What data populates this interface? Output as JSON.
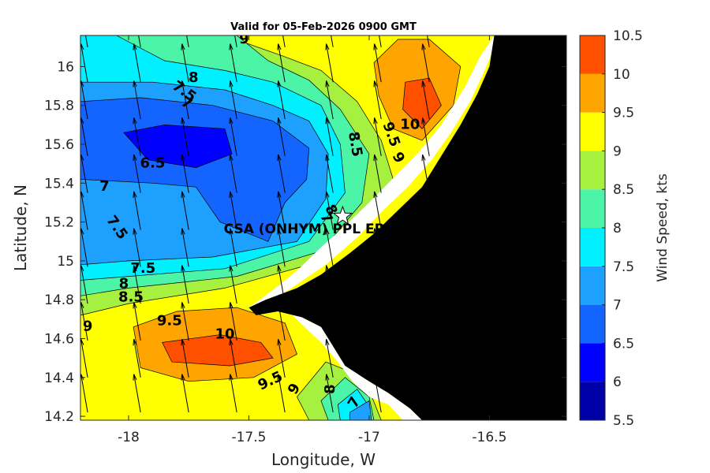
{
  "chart_data": {
    "type": "filled-contour-quiver",
    "title": "Valid for 05-Feb-2026 0900 GMT",
    "xlabel": "Longitude, W",
    "ylabel": "Latitude, N",
    "xlim": [
      -18.2,
      -16.18
    ],
    "ylim": [
      14.18,
      16.16
    ],
    "xticks": [
      {
        "value": -18,
        "label": "-18"
      },
      {
        "value": -17.5,
        "label": "-17.5"
      },
      {
        "value": -17,
        "label": "-17"
      },
      {
        "value": -16.5,
        "label": "-16.5"
      }
    ],
    "yticks": [
      {
        "value": 16,
        "label": "16"
      },
      {
        "value": 15.8,
        "label": "15.8"
      },
      {
        "value": 15.6,
        "label": "15.6"
      },
      {
        "value": 15.4,
        "label": "15.4"
      },
      {
        "value": 15.2,
        "label": "15.2"
      },
      {
        "value": 15,
        "label": "15"
      },
      {
        "value": 14.8,
        "label": "14.8"
      },
      {
        "value": 14.6,
        "label": "14.6"
      },
      {
        "value": 14.4,
        "label": "14.4"
      },
      {
        "value": 14.2,
        "label": "14.2"
      }
    ],
    "colorbar": {
      "label": "Wind Speed, kts",
      "min": 5.5,
      "max": 10.5,
      "levels": [
        {
          "from": 5.5,
          "to": 6.0,
          "color": "#0000a8"
        },
        {
          "from": 6.0,
          "to": 6.5,
          "color": "#0000ff"
        },
        {
          "from": 6.5,
          "to": 7.0,
          "color": "#1464ff"
        },
        {
          "from": 7.0,
          "to": 7.5,
          "color": "#1ea0ff"
        },
        {
          "from": 7.5,
          "to": 8.0,
          "color": "#00f0ff"
        },
        {
          "from": 8.0,
          "to": 8.5,
          "color": "#4cf4a8"
        },
        {
          "from": 8.5,
          "to": 9.0,
          "color": "#a6f040"
        },
        {
          "from": 9.0,
          "to": 9.5,
          "color": "#ffff00"
        },
        {
          "from": 9.5,
          "to": 10.0,
          "color": "#ffa500"
        },
        {
          "from": 10.0,
          "to": 10.5,
          "color": "#ff5000"
        }
      ],
      "ticks": [
        {
          "value": 10.5,
          "label": "10.5"
        },
        {
          "value": 10,
          "label": "10"
        },
        {
          "value": 9.5,
          "label": "9.5"
        },
        {
          "value": 9,
          "label": "9"
        },
        {
          "value": 8.5,
          "label": "8.5"
        },
        {
          "value": 8,
          "label": "8"
        },
        {
          "value": 7.5,
          "label": "7.5"
        },
        {
          "value": 7,
          "label": "7"
        },
        {
          "value": 6.5,
          "label": "6.5"
        },
        {
          "value": 6,
          "label": "6"
        },
        {
          "value": 5.5,
          "label": "5.5"
        }
      ]
    },
    "contour_bands": [
      {
        "level": 9.0,
        "color": "#ffff00",
        "points": [
          [
            -18.2,
            14.18
          ],
          [
            -16.18,
            14.18
          ],
          [
            -16.18,
            16.16
          ],
          [
            -18.2,
            16.16
          ]
        ]
      },
      {
        "level": 8.5,
        "color": "#a6f040",
        "points": [
          [
            -18.2,
            16.16
          ],
          [
            -17.6,
            16.16
          ],
          [
            -17.35,
            16.05
          ],
          [
            -17.2,
            15.98
          ],
          [
            -17.05,
            15.82
          ],
          [
            -16.95,
            15.62
          ],
          [
            -16.9,
            15.42
          ],
          [
            -17.0,
            15.18
          ],
          [
            -17.25,
            14.98
          ],
          [
            -17.6,
            14.86
          ],
          [
            -18.0,
            14.78
          ],
          [
            -18.2,
            14.72
          ]
        ]
      },
      {
        "level": 8.5,
        "color": "#a6f040",
        "points": [
          [
            -17.25,
            14.18
          ],
          [
            -17.3,
            14.3
          ],
          [
            -17.18,
            14.48
          ],
          [
            -17.02,
            14.4
          ],
          [
            -16.95,
            14.18
          ]
        ]
      },
      {
        "level": 8.0,
        "color": "#4cf4a8",
        "points": [
          [
            -18.2,
            16.16
          ],
          [
            -17.55,
            16.16
          ],
          [
            -17.42,
            16.03
          ],
          [
            -17.25,
            15.93
          ],
          [
            -17.12,
            15.78
          ],
          [
            -17.0,
            15.55
          ],
          [
            -17.03,
            15.3
          ],
          [
            -17.2,
            15.05
          ],
          [
            -17.55,
            14.92
          ],
          [
            -18.0,
            14.86
          ],
          [
            -18.2,
            14.82
          ]
        ]
      },
      {
        "level": 8.0,
        "color": "#4cf4a8",
        "points": [
          [
            -17.17,
            14.18
          ],
          [
            -17.2,
            14.28
          ],
          [
            -17.1,
            14.4
          ],
          [
            -17.0,
            14.3
          ],
          [
            -16.98,
            14.18
          ]
        ]
      },
      {
        "level": 7.5,
        "color": "#00f0ff",
        "points": [
          [
            -18.2,
            16.16
          ],
          [
            -18.05,
            16.16
          ],
          [
            -17.85,
            16.03
          ],
          [
            -17.6,
            15.98
          ],
          [
            -17.4,
            15.92
          ],
          [
            -17.2,
            15.8
          ],
          [
            -17.12,
            15.6
          ],
          [
            -17.1,
            15.35
          ],
          [
            -17.25,
            15.1
          ],
          [
            -17.6,
            14.96
          ],
          [
            -18.0,
            14.92
          ],
          [
            -18.2,
            14.9
          ]
        ]
      },
      {
        "level": 7.5,
        "color": "#00f0ff",
        "points": [
          [
            -17.12,
            14.18
          ],
          [
            -17.13,
            14.26
          ],
          [
            -17.05,
            14.34
          ],
          [
            -17.0,
            14.25
          ],
          [
            -16.99,
            14.18
          ]
        ]
      },
      {
        "level": 7.0,
        "color": "#1ea0ff",
        "points": [
          [
            -18.2,
            15.92
          ],
          [
            -17.9,
            15.92
          ],
          [
            -17.6,
            15.88
          ],
          [
            -17.4,
            15.8
          ],
          [
            -17.25,
            15.72
          ],
          [
            -17.17,
            15.55
          ],
          [
            -17.18,
            15.32
          ],
          [
            -17.3,
            15.1
          ],
          [
            -17.65,
            15.02
          ],
          [
            -18.0,
            15.0
          ],
          [
            -18.2,
            14.98
          ]
        ]
      },
      {
        "level": 7.0,
        "color": "#1ea0ff",
        "points": [
          [
            -17.08,
            14.18
          ],
          [
            -17.08,
            14.22
          ],
          [
            -17.0,
            14.28
          ],
          [
            -16.99,
            14.18
          ]
        ]
      },
      {
        "level": 6.5,
        "color": "#1464ff",
        "points": [
          [
            -18.2,
            15.82
          ],
          [
            -17.95,
            15.84
          ],
          [
            -17.65,
            15.8
          ],
          [
            -17.4,
            15.72
          ],
          [
            -17.25,
            15.58
          ],
          [
            -17.26,
            15.42
          ],
          [
            -17.35,
            15.3
          ],
          [
            -17.42,
            15.1
          ],
          [
            -17.62,
            15.2
          ],
          [
            -17.72,
            15.38
          ],
          [
            -17.9,
            15.4
          ],
          [
            -18.2,
            15.42
          ]
        ]
      },
      {
        "level": 6.0,
        "color": "#0000ff",
        "points": [
          [
            -18.02,
            15.66
          ],
          [
            -17.85,
            15.7
          ],
          [
            -17.6,
            15.68
          ],
          [
            -17.57,
            15.55
          ],
          [
            -17.72,
            15.48
          ],
          [
            -17.92,
            15.52
          ]
        ]
      },
      {
        "level": 9.5,
        "color": "#ffa500",
        "points": [
          [
            -17.98,
            14.66
          ],
          [
            -17.8,
            14.74
          ],
          [
            -17.55,
            14.76
          ],
          [
            -17.35,
            14.68
          ],
          [
            -17.3,
            14.52
          ],
          [
            -17.48,
            14.4
          ],
          [
            -17.75,
            14.38
          ],
          [
            -17.95,
            14.45
          ]
        ]
      },
      {
        "level": 10.0,
        "color": "#ff5000",
        "points": [
          [
            -17.86,
            14.58
          ],
          [
            -17.62,
            14.62
          ],
          [
            -17.45,
            14.58
          ],
          [
            -17.4,
            14.5
          ],
          [
            -17.58,
            14.46
          ],
          [
            -17.82,
            14.48
          ]
        ]
      },
      {
        "level": 9.5,
        "color": "#ffa500",
        "points": [
          [
            -16.98,
            16.02
          ],
          [
            -16.88,
            16.14
          ],
          [
            -16.75,
            16.14
          ],
          [
            -16.62,
            16.0
          ],
          [
            -16.65,
            15.8
          ],
          [
            -16.78,
            15.62
          ],
          [
            -16.9,
            15.68
          ],
          [
            -16.96,
            15.85
          ]
        ]
      },
      {
        "level": 10.0,
        "color": "#ff5000",
        "points": [
          [
            -16.85,
            15.92
          ],
          [
            -16.75,
            15.94
          ],
          [
            -16.7,
            15.8
          ],
          [
            -16.78,
            15.68
          ],
          [
            -16.86,
            15.78
          ]
        ]
      }
    ],
    "land": [
      [
        -16.48,
        16.16
      ],
      [
        -16.18,
        16.16
      ],
      [
        -16.18,
        14.18
      ],
      [
        -16.78,
        14.18
      ],
      [
        -16.83,
        14.24
      ],
      [
        -16.92,
        14.32
      ],
      [
        -17.0,
        14.38
      ],
      [
        -17.1,
        14.46
      ],
      [
        -17.15,
        14.56
      ],
      [
        -17.2,
        14.66
      ],
      [
        -17.28,
        14.71
      ],
      [
        -17.38,
        14.74
      ],
      [
        -17.47,
        14.72
      ],
      [
        -17.5,
        14.76
      ],
      [
        -17.43,
        14.8
      ],
      [
        -17.3,
        14.86
      ],
      [
        -17.2,
        14.93
      ],
      [
        -17.08,
        15.04
      ],
      [
        -16.98,
        15.14
      ],
      [
        -16.88,
        15.26
      ],
      [
        -16.78,
        15.38
      ],
      [
        -16.7,
        15.54
      ],
      [
        -16.62,
        15.7
      ],
      [
        -16.55,
        15.86
      ],
      [
        -16.5,
        16.0
      ]
    ],
    "coastal_strip": [
      [
        -16.48,
        16.16
      ],
      [
        -16.54,
        16.05
      ],
      [
        -16.6,
        15.9
      ],
      [
        -16.7,
        15.7
      ],
      [
        -16.8,
        15.55
      ],
      [
        -16.92,
        15.4
      ],
      [
        -17.0,
        15.3
      ],
      [
        -17.1,
        15.18
      ],
      [
        -17.2,
        15.07
      ],
      [
        -17.3,
        14.95
      ],
      [
        -17.4,
        14.85
      ],
      [
        -17.5,
        14.76
      ],
      [
        -17.47,
        14.72
      ],
      [
        -17.38,
        14.74
      ],
      [
        -17.28,
        14.71
      ],
      [
        -17.2,
        14.66
      ],
      [
        -17.15,
        14.56
      ],
      [
        -17.1,
        14.46
      ],
      [
        -17.0,
        14.38
      ],
      [
        -16.92,
        14.32
      ],
      [
        -16.83,
        14.24
      ],
      [
        -16.78,
        14.18
      ],
      [
        -16.86,
        14.18
      ],
      [
        -16.92,
        14.26
      ],
      [
        -17.0,
        14.3
      ],
      [
        -17.07,
        14.38
      ],
      [
        -17.13,
        14.48
      ],
      [
        -17.2,
        14.58
      ],
      [
        -17.26,
        14.65
      ],
      [
        -17.32,
        14.72
      ],
      [
        -17.42,
        14.78
      ],
      [
        -17.3,
        14.88
      ],
      [
        -17.18,
        14.98
      ],
      [
        -17.05,
        15.12
      ],
      [
        -16.95,
        15.25
      ],
      [
        -16.84,
        15.38
      ],
      [
        -16.74,
        15.52
      ],
      [
        -16.66,
        15.66
      ],
      [
        -16.58,
        15.82
      ],
      [
        -16.52,
        15.98
      ],
      [
        -16.46,
        16.16
      ]
    ],
    "contour_labels": [
      {
        "text": "9",
        "lon": -17.52,
        "lat": 16.14,
        "rot": 0
      },
      {
        "text": "8",
        "lon": -17.73,
        "lat": 15.94,
        "rot": 0
      },
      {
        "text": "7.5",
        "lon": -17.77,
        "lat": 15.87,
        "rot": 35
      },
      {
        "text": "7",
        "lon": -17.76,
        "lat": 15.81,
        "rot": 30
      },
      {
        "text": "10",
        "lon": -16.83,
        "lat": 15.7,
        "rot": 0
      },
      {
        "text": "9.5",
        "lon": -16.91,
        "lat": 15.65,
        "rot": 70
      },
      {
        "text": "9",
        "lon": -16.88,
        "lat": 15.53,
        "rot": 60
      },
      {
        "text": "8.5",
        "lon": -17.06,
        "lat": 15.6,
        "rot": 80
      },
      {
        "text": "6.5",
        "lon": -17.9,
        "lat": 15.5,
        "rot": 0
      },
      {
        "text": "7",
        "lon": -18.1,
        "lat": 15.38,
        "rot": 0
      },
      {
        "text": "7.5",
        "lon": -18.05,
        "lat": 15.17,
        "rot": 55
      },
      {
        "text": "7",
        "lon": -17.18,
        "lat": 15.22,
        "rot": 60
      },
      {
        "text": "8",
        "lon": -17.16,
        "lat": 15.26,
        "rot": 60
      },
      {
        "text": "7.5",
        "lon": -17.94,
        "lat": 14.96,
        "rot": 0
      },
      {
        "text": "8",
        "lon": -18.02,
        "lat": 14.88,
        "rot": 0
      },
      {
        "text": "8.5",
        "lon": -17.99,
        "lat": 14.81,
        "rot": 0
      },
      {
        "text": "9",
        "lon": -18.17,
        "lat": 14.66,
        "rot": 0
      },
      {
        "text": "9.5",
        "lon": -17.83,
        "lat": 14.69,
        "rot": 0
      },
      {
        "text": "10",
        "lon": -17.6,
        "lat": 14.62,
        "rot": 0
      },
      {
        "text": "9.5",
        "lon": -17.41,
        "lat": 14.38,
        "rot": -25
      },
      {
        "text": "9",
        "lon": -17.31,
        "lat": 14.34,
        "rot": -60
      },
      {
        "text": "8",
        "lon": -17.16,
        "lat": 14.34,
        "rot": -90
      },
      {
        "text": "7",
        "lon": -17.06,
        "lat": 14.27,
        "rot": -60
      }
    ],
    "site": {
      "label": "CSA (ONHYM) PPL EP",
      "lon": -17.11,
      "lat": 15.23
    },
    "wind_arrows": {
      "lons": [
        -18.17,
        -17.95,
        -17.75,
        -17.55,
        -17.35,
        -17.15,
        -16.95,
        -16.75
      ],
      "lats": [
        16.1,
        15.92,
        15.73,
        15.54,
        15.35,
        15.16,
        14.97,
        14.78,
        14.59,
        14.4,
        14.22
      ],
      "direction_from_north_deg": 190,
      "length_deg": 0.2
    }
  }
}
